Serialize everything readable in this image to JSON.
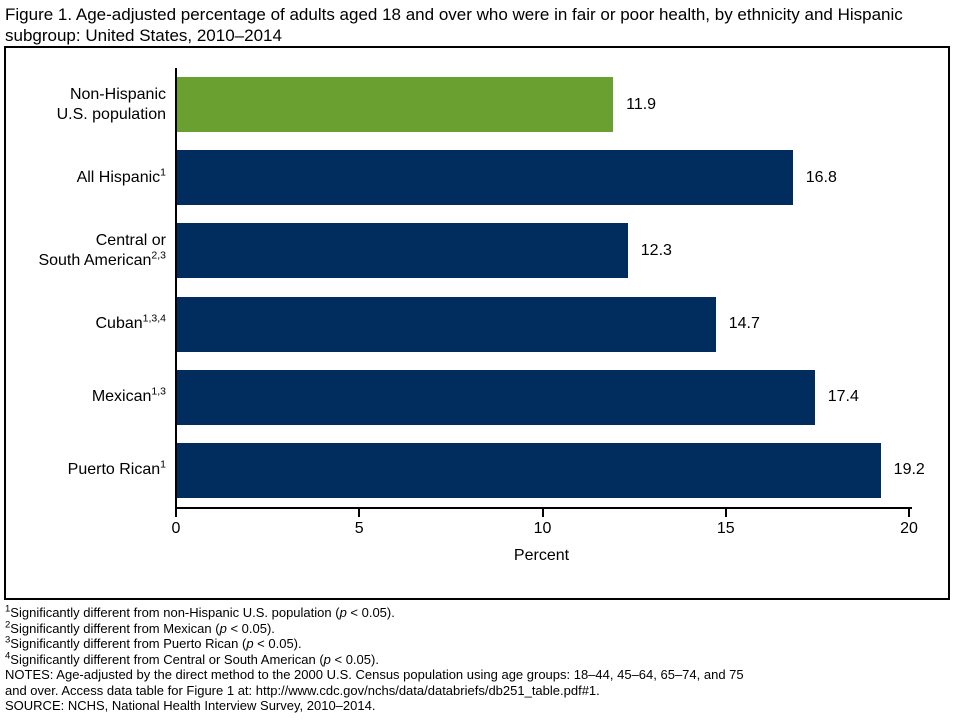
{
  "figure": {
    "title": "Figure 1. Age-adjusted percentage of adults aged 18 and over who were in fair or poor health, by ethnicity and Hispanic subgroup: United States, 2010–2014",
    "title_lines": [
      "Figure 1. Age-adjusted percentage of adults aged 18 and over who were in fair or poor health, by ethnicity and Hispanic",
      "subgroup: United States, 2010–2014"
    ]
  },
  "chart_data": {
    "type": "bar",
    "orientation": "horizontal",
    "title": "Figure 1. Age-adjusted percentage of adults aged 18 and over who were in fair or poor health, by ethnicity and Hispanic subgroup: United States, 2010–2014",
    "xlabel": "Percent",
    "xlim": [
      0,
      20
    ],
    "x_ticks": [
      "0",
      "5",
      "10",
      "15",
      "20"
    ],
    "x_tick_values": [
      0,
      5,
      10,
      15,
      20
    ],
    "grid": false,
    "legend": "none",
    "colors": {
      "non_hispanic_highlight": "#6AA02F",
      "hispanic_default": "#002D5E",
      "axis": "#000000"
    },
    "bars": [
      {
        "label_lines": [
          "Non-Hispanic",
          "U.S. population"
        ],
        "superscript": "",
        "value": 11.9,
        "value_label": "11.9",
        "color": "#6AA02F"
      },
      {
        "label_lines": [
          "All Hispanic"
        ],
        "superscript": "1",
        "value": 16.8,
        "value_label": "16.8",
        "color": "#002D5E"
      },
      {
        "label_lines": [
          "Central or",
          "South American"
        ],
        "superscript": "2,3",
        "value": 12.3,
        "value_label": "12.3",
        "color": "#002D5E"
      },
      {
        "label_lines": [
          "Cuban"
        ],
        "superscript": "1,3,4",
        "value": 14.7,
        "value_label": "14.7",
        "color": "#002D5E"
      },
      {
        "label_lines": [
          "Mexican"
        ],
        "superscript": "1,3",
        "value": 17.4,
        "value_label": "17.4",
        "color": "#002D5E"
      },
      {
        "label_lines": [
          "Puerto Rican"
        ],
        "superscript": "1",
        "value": 19.2,
        "value_label": "19.2",
        "color": "#002D5E"
      }
    ]
  },
  "footnotes": [
    {
      "sup": "1",
      "pre": "Significantly different from non-Hispanic U.S. population (",
      "p": "p",
      "post": " < 0.05)."
    },
    {
      "sup": "2",
      "pre": "Significantly different from Mexican (",
      "p": "p",
      "post": " < 0.05)."
    },
    {
      "sup": "3",
      "pre": "Significantly different from Puerto Rican (",
      "p": "p",
      "post": " < 0.05)."
    },
    {
      "sup": "4",
      "pre": "Significantly different from Central or South American (",
      "p": "p",
      "post": " < 0.05)."
    }
  ],
  "notes": "NOTES: Age-adjusted by the direct method to the 2000 U.S. Census population using age groups: 18–44, 45–64, 65–74, and 75 and over. Access data table for Figure 1 at: http://www.cdc.gov/nchs/data/databriefs/db251_table.pdf#1.",
  "notes_lines": [
    "NOTES: Age-adjusted by the direct method to the 2000 U.S. Census population using age groups: 18–44, 45–64, 65–74, and 75",
    "and over. Access data table for Figure 1 at: http://www.cdc.gov/nchs/data/databriefs/db251_table.pdf#1."
  ],
  "source": "SOURCE: NCHS, National Health Interview Survey, 2010–2014."
}
